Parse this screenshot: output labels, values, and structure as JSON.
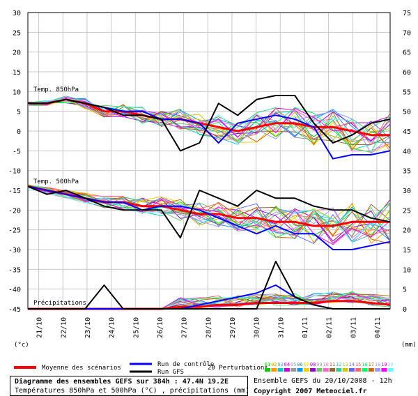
{
  "chart_data": {
    "type": "line",
    "y_left_ticks": [
      "30",
      "25",
      "20",
      "15",
      "10",
      "5",
      "0",
      "-5",
      "-10",
      "-15",
      "-20",
      "-25",
      "-30",
      "-35",
      "-40",
      "-45"
    ],
    "y_right_ticks": [
      "75",
      "70",
      "65",
      "60",
      "55",
      "50",
      "45",
      "40",
      "35",
      "30",
      "25",
      "20",
      "15",
      "10",
      "5",
      "0"
    ],
    "left_unit": "(°c)",
    "right_unit": "(mm)",
    "x_labels": [
      "21/10",
      "22/10",
      "23/10",
      "24/10",
      "25/10",
      "26/10",
      "27/10",
      "28/10",
      "29/10",
      "30/10",
      "31/10",
      "01/11",
      "02/11",
      "03/11",
      "04/11"
    ],
    "ylim_temp": [
      -45,
      30
    ],
    "ylim_precip": [
      0,
      75
    ],
    "panel_labels": {
      "t850": "Temp. 850hPa",
      "t500": "Temp. 500hPa",
      "precip": "Précipitations"
    },
    "colors": {
      "mean": "#ff0000",
      "control": "#0000ff",
      "gfs": "#000000",
      "grid": "#c8c8c8"
    },
    "perturbation_colors": [
      "#00cc00",
      "#ff9900",
      "#00cccc",
      "#cc00cc",
      "#999999",
      "#0099ff",
      "#ffcc00",
      "#9900cc",
      "#66cc66",
      "#ff66cc",
      "#996633",
      "#33cc99",
      "#cccc00",
      "#6666ff",
      "#ff6666",
      "#00ff66",
      "#cc6600",
      "#9999ff",
      "#ff00ff",
      "#66ffff"
    ],
    "series": [
      {
        "name": "Moyenne des scénarios",
        "t850": [
          7,
          7,
          8,
          7,
          5,
          5,
          4,
          3,
          3,
          2,
          1,
          0,
          1,
          2,
          2,
          1,
          1,
          0,
          -1,
          -1
        ],
        "t500": [
          -14,
          -15,
          -16,
          -17,
          -18,
          -18,
          -19,
          -19,
          -20,
          -21,
          -21,
          -22,
          -22,
          -23,
          -23,
          -24,
          -24,
          -23,
          -23,
          -23
        ],
        "precip": [
          0,
          0,
          0,
          0,
          0,
          0,
          0,
          0,
          0.5,
          0.5,
          1,
          1,
          1.5,
          1.5,
          1.5,
          1.5,
          2,
          2,
          1.5,
          1
        ]
      },
      {
        "name": "Run de contrôle",
        "t850": [
          7,
          7,
          8,
          7,
          6,
          5,
          5,
          3,
          3,
          2,
          -3,
          2,
          3,
          4,
          3,
          1,
          -7,
          -6,
          -6,
          -5
        ],
        "t500": [
          -14,
          -15,
          -16,
          -17,
          -18,
          -18,
          -20,
          -19,
          -19,
          -20,
          -22,
          -24,
          -26,
          -24,
          -26,
          -26,
          -30,
          -30,
          -29,
          -28
        ],
        "precip": [
          0,
          0,
          0,
          0,
          0,
          0,
          0,
          0,
          0,
          1,
          2,
          3,
          4,
          6,
          3,
          1,
          0,
          0,
          0,
          0
        ]
      },
      {
        "name": "Run GFS",
        "t850": [
          7,
          7,
          8,
          7,
          6,
          4,
          4,
          3,
          -5,
          -3,
          7,
          4,
          8,
          9,
          9,
          2,
          -3,
          -1,
          2,
          3
        ],
        "t500": [
          -14,
          -16,
          -15,
          -17,
          -19,
          -20,
          -20,
          -20,
          -27,
          -15,
          -17,
          -19,
          -15,
          -17,
          -17,
          -19,
          -20,
          -20,
          -22,
          -23
        ],
        "precip": [
          0,
          0,
          0,
          0,
          6,
          0,
          0,
          0,
          0,
          0,
          0,
          0,
          0,
          12,
          3,
          1,
          0,
          0,
          0,
          0
        ]
      }
    ],
    "perturbation_count_label": "20 Perturbations",
    "perturbation_ids": [
      "01",
      "02",
      "03",
      "04",
      "05",
      "06",
      "07",
      "08",
      "09",
      "10",
      "11",
      "12",
      "13",
      "14",
      "15",
      "16",
      "17",
      "18",
      "19",
      "20"
    ]
  },
  "footer": {
    "line1": "Diagramme des ensembles GEFS sur 384h : 47.4N 19.2E",
    "line2": "Températures 850hPa et 500hPa (°C) , précipitations (mm)",
    "run_info": "Ensemble GEFS du 20/10/2008 - 12h",
    "copyright": "Copyright 2007 Meteociel.fr"
  }
}
